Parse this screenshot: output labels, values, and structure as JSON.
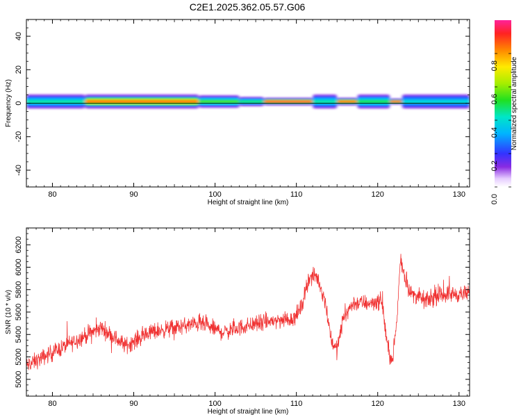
{
  "title": "C2E1.2025.362.05.57.G06",
  "chart_data": [
    {
      "id": "spectrogram",
      "type": "heatmap",
      "xlabel": "Height of straight line (km)",
      "ylabel": "Frequency (Hz)",
      "xlim": [
        76.8,
        131.3
      ],
      "ylim": [
        -50,
        50
      ],
      "xticks": [
        80,
        90,
        100,
        110,
        120,
        130
      ],
      "yticks": [
        -40,
        -20,
        0,
        20,
        40
      ],
      "colorbar": {
        "label": "Normalized spectral amplitude",
        "range": [
          0,
          1
        ],
        "ticks": [
          0.0,
          0.2,
          0.4,
          0.6,
          0.8
        ],
        "tick_labels": [
          "0.0",
          "0.2",
          "0.4",
          "0.6",
          "0.8"
        ]
      },
      "band": {
        "center_hz": 1,
        "segments": [
          {
            "x_start": 76.8,
            "x_end": 84,
            "half_width_hz": 4.5,
            "core": 0.45
          },
          {
            "x_start": 84,
            "x_end": 98,
            "half_width_hz": 4.5,
            "core": 0.85
          },
          {
            "x_start": 98,
            "x_end": 103,
            "half_width_hz": 4,
            "core": 0.55
          },
          {
            "x_start": 103,
            "x_end": 106,
            "half_width_hz": 3,
            "core": 0.5
          },
          {
            "x_start": 106,
            "x_end": 112,
            "half_width_hz": 2.5,
            "core": 0.95
          },
          {
            "x_start": 112,
            "x_end": 115,
            "half_width_hz": 4.5,
            "core": 0.45
          },
          {
            "x_start": 115,
            "x_end": 117.5,
            "half_width_hz": 2.5,
            "core": 0.9
          },
          {
            "x_start": 117.5,
            "x_end": 121.5,
            "half_width_hz": 4.5,
            "core": 0.5
          },
          {
            "x_start": 121.5,
            "x_end": 123,
            "half_width_hz": 2,
            "core": 0.95
          },
          {
            "x_start": 123,
            "x_end": 131.3,
            "half_width_hz": 4.5,
            "core": 0.4
          }
        ]
      }
    },
    {
      "id": "snr",
      "type": "line",
      "xlabel": "Height of straight line (km)",
      "ylabel": "SNR (10 * v/v)",
      "xlim": [
        76.8,
        131.3
      ],
      "ylim": [
        4850,
        6350
      ],
      "xticks": [
        80,
        90,
        100,
        110,
        120,
        130
      ],
      "yticks": [
        5000,
        5200,
        5400,
        5600,
        5800,
        6000,
        6200
      ],
      "series": [
        {
          "name": "SNR",
          "color": "#f03232",
          "x": [
            76.8,
            80,
            83,
            86,
            89,
            92,
            95,
            98,
            101,
            104,
            107,
            109.5,
            110.5,
            111.5,
            112.5,
            113.5,
            114.3,
            115,
            115.8,
            117,
            119,
            120.5,
            121.2,
            121.8,
            122.4,
            122.8,
            123.2,
            124,
            126,
            128,
            131.3
          ],
          "mean": [
            5120,
            5240,
            5350,
            5460,
            5300,
            5420,
            5460,
            5500,
            5420,
            5480,
            5520,
            5540,
            5620,
            5900,
            5920,
            5720,
            5350,
            5260,
            5560,
            5680,
            5680,
            5700,
            5300,
            5150,
            5560,
            6100,
            5950,
            5770,
            5700,
            5760,
            5760
          ],
          "noise_amplitude": 110
        }
      ]
    }
  ]
}
